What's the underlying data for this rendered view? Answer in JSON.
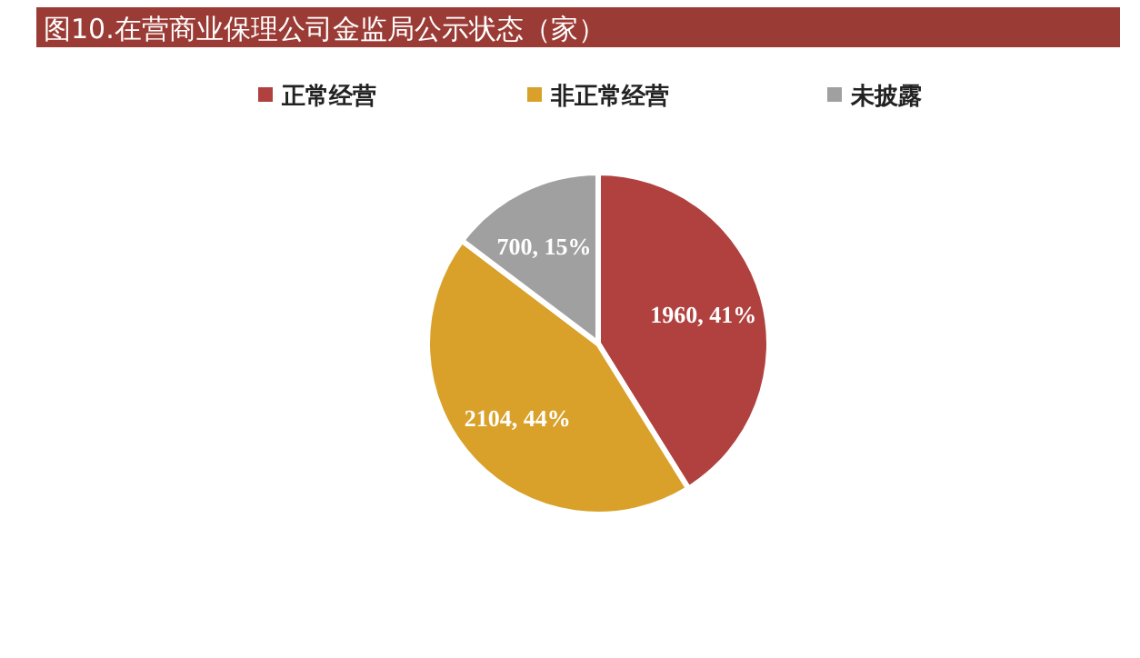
{
  "chart_data": {
    "type": "pie",
    "title": "图10.在营商业保理公司金监局公示状态（家）",
    "categories": [
      "正常经营",
      "非正常经营",
      "未披露"
    ],
    "values": [
      1960,
      2104,
      700
    ],
    "colors": [
      "#b0413e",
      "#d9a12a",
      "#a0a0a0"
    ],
    "value_labels": [
      "1960, 41%",
      "2104, 44%",
      "700, 15%"
    ],
    "legend": "top"
  }
}
